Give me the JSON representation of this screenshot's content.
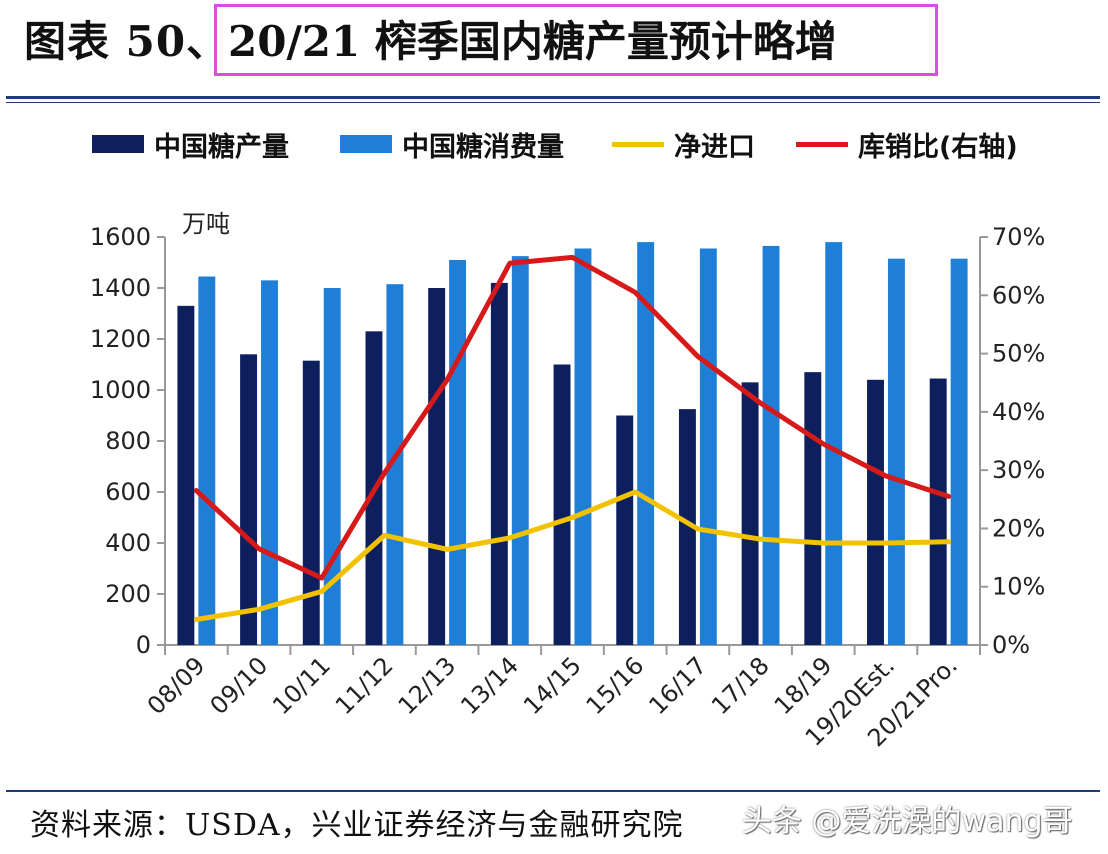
{
  "figure": {
    "prefix": "图表 50、",
    "title": "20/21 榨季国内糖产量预计略增"
  },
  "legend": [
    {
      "label": "中国糖产量",
      "color": "#0d1f5c",
      "kind": "bar"
    },
    {
      "label": "中国糖消费量",
      "color": "#1f7fd6",
      "kind": "bar"
    },
    {
      "label": "净进口",
      "color": "#f2c200",
      "kind": "line"
    },
    {
      "label": "库销比(右轴)",
      "color": "#d61a1a",
      "kind": "line"
    }
  ],
  "source": "资料来源：USDA，兴业证券经济与金融研究院",
  "watermark": "头条 @爱洗澡的wang哥",
  "chart_data": {
    "type": "bar",
    "ylabel": "万吨",
    "ylim": [
      0,
      1600
    ],
    "y2lim": [
      0,
      0.7
    ],
    "y_ticks": [
      "0",
      "200",
      "400",
      "600",
      "800",
      "1000",
      "1200",
      "1400",
      "1600"
    ],
    "y2_ticks": [
      "0%",
      "10%",
      "20%",
      "30%",
      "40%",
      "50%",
      "60%",
      "70%"
    ],
    "categories": [
      "08/09",
      "09/10",
      "10/11",
      "11/12",
      "12/13",
      "13/14",
      "14/15",
      "15/16",
      "16/17",
      "17/18",
      "18/19",
      "19/20Est.",
      "20/21Pro."
    ],
    "series": [
      {
        "name": "中国糖产量",
        "type": "bar",
        "axis": "left",
        "color": "#0d1f5c",
        "values": [
          1330,
          1140,
          1115,
          1230,
          1400,
          1420,
          1100,
          900,
          925,
          1030,
          1070,
          1040,
          1045
        ]
      },
      {
        "name": "中国糖消费量",
        "type": "bar",
        "axis": "left",
        "color": "#1f7fd6",
        "values": [
          1445,
          1430,
          1400,
          1415,
          1510,
          1525,
          1555,
          1580,
          1555,
          1565,
          1580,
          1515,
          1515
        ]
      },
      {
        "name": "净进口",
        "type": "line",
        "axis": "left",
        "color": "#f2c200",
        "values": [
          100,
          140,
          210,
          430,
          375,
          420,
          500,
          600,
          455,
          415,
          400,
          400,
          405
        ]
      },
      {
        "name": "库销比(右轴)",
        "type": "line",
        "axis": "right",
        "color": "#d61a1a",
        "values": [
          0.265,
          0.165,
          0.115,
          0.295,
          0.455,
          0.655,
          0.665,
          0.605,
          0.495,
          0.415,
          0.345,
          0.29,
          0.255
        ]
      }
    ]
  }
}
